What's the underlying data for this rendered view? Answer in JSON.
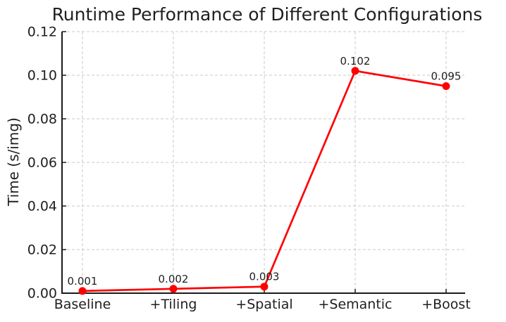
{
  "chart_data": {
    "type": "line",
    "title": "Runtime Performance of Different Configurations",
    "xlabel": "",
    "ylabel": "Time (s/img)",
    "categories": [
      "Baseline",
      "+Tiling",
      "+Spatial",
      "+Semantic",
      "+Boost"
    ],
    "values": [
      0.001,
      0.002,
      0.003,
      0.102,
      0.095
    ],
    "point_labels": [
      "0.001",
      "0.002",
      "0.003",
      "0.102",
      "0.095"
    ],
    "yticks": [
      0,
      0.02,
      0.04,
      0.06,
      0.08,
      0.1,
      0.12
    ],
    "ytick_labels": [
      "0.00",
      "0.02",
      "0.04",
      "0.06",
      "0.08",
      "0.10",
      "0.12"
    ],
    "ylim": [
      0,
      0.12
    ],
    "grid": true,
    "legend": "none",
    "colors": {
      "line": "#ff0000",
      "marker": "#ff0000",
      "grid": "#c8c8c8",
      "text": "#1f1f1f",
      "axis": "#1a1a1a",
      "background": "#ffffff"
    }
  }
}
